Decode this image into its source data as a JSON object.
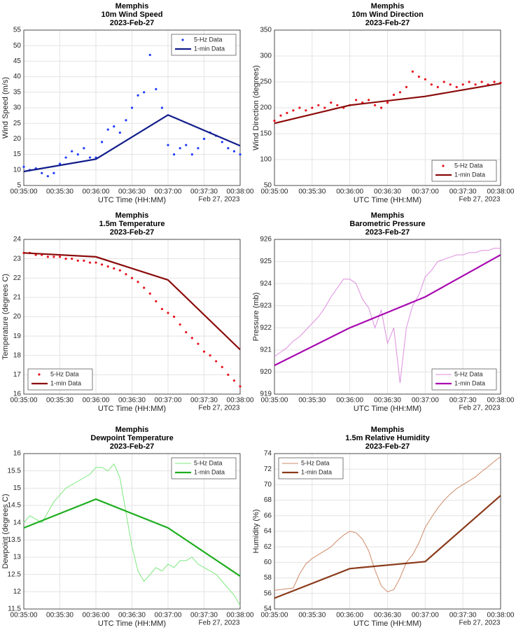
{
  "chart_data": [
    {
      "type": "line",
      "title": [
        "Memphis",
        "10m Wind Speed",
        "2023-Feb-27"
      ],
      "xlabel": "UTC Time (HH:MM)",
      "ylabel": "Wind Speed (m/s)",
      "date_label": "Feb 27, 2023",
      "xlim": [
        "00:35:00",
        "00:38:00"
      ],
      "xticks": [
        "00:35:00",
        "00:35:30",
        "00:36:00",
        "00:36:30",
        "00:37:00",
        "00:37:30",
        "00:38:00"
      ],
      "ylim": [
        5,
        55
      ],
      "yticks": [
        5,
        10,
        15,
        20,
        25,
        30,
        35,
        40,
        45,
        50,
        55
      ],
      "grid": true,
      "legend": "top-right",
      "series": [
        {
          "name": "5-Hz Data",
          "color": "#1f3cff",
          "style": "dots",
          "x": [
            "00:35:00",
            "00:35:05",
            "00:35:10",
            "00:35:15",
            "00:35:20",
            "00:35:25",
            "00:35:30",
            "00:35:35",
            "00:35:40",
            "00:35:45",
            "00:35:50",
            "00:35:55",
            "00:36:00",
            "00:36:05",
            "00:36:10",
            "00:36:15",
            "00:36:20",
            "00:36:25",
            "00:36:30",
            "00:36:35",
            "00:36:40",
            "00:36:45",
            "00:36:50",
            "00:36:55",
            "00:37:00",
            "00:37:05",
            "00:37:10",
            "00:37:15",
            "00:37:20",
            "00:37:25",
            "00:37:30",
            "00:37:35",
            "00:37:40",
            "00:37:45",
            "00:37:50",
            "00:37:55",
            "00:38:00"
          ],
          "values": [
            11,
            10,
            10.5,
            9,
            8,
            9,
            12,
            14,
            16,
            15,
            17,
            14,
            14,
            19,
            23,
            24,
            22,
            26,
            30,
            34,
            35,
            47,
            36,
            30,
            18,
            15,
            17,
            18,
            15,
            17,
            20,
            22,
            21,
            19,
            17,
            16,
            15
          ]
        },
        {
          "name": "1-min Data",
          "color": "#101c8a",
          "style": "line",
          "x": [
            "00:35:00",
            "00:36:00",
            "00:37:00",
            "00:38:00"
          ],
          "values": [
            9.5,
            13.5,
            27.7,
            17.8
          ]
        }
      ]
    },
    {
      "type": "line",
      "title": [
        "Memphis",
        "10m Wind Direction",
        "2023-Feb-27"
      ],
      "xlabel": "UTC Time (HH:MM)",
      "ylabel": "Wind Direction (degrees)",
      "date_label": "Feb 27, 2023",
      "xlim": [
        "00:35:00",
        "00:38:00"
      ],
      "xticks": [
        "00:35:00",
        "00:35:30",
        "00:36:00",
        "00:36:30",
        "00:37:00",
        "00:37:30",
        "00:38:00"
      ],
      "ylim": [
        50,
        350
      ],
      "yticks": [
        50,
        100,
        150,
        200,
        250,
        300,
        350
      ],
      "grid": true,
      "legend": "bottom-right",
      "series": [
        {
          "name": "5-Hz Data",
          "color": "#e8141e",
          "style": "dots",
          "x": [
            "00:35:00",
            "00:35:05",
            "00:35:10",
            "00:35:15",
            "00:35:20",
            "00:35:25",
            "00:35:30",
            "00:35:35",
            "00:35:40",
            "00:35:45",
            "00:35:50",
            "00:35:55",
            "00:36:00",
            "00:36:05",
            "00:36:10",
            "00:36:15",
            "00:36:20",
            "00:36:25",
            "00:36:30",
            "00:36:35",
            "00:36:40",
            "00:36:45",
            "00:36:50",
            "00:36:55",
            "00:37:00",
            "00:37:05",
            "00:37:10",
            "00:37:15",
            "00:37:20",
            "00:37:25",
            "00:37:30",
            "00:37:35",
            "00:37:40",
            "00:37:45",
            "00:37:50",
            "00:37:55",
            "00:38:00"
          ],
          "values": [
            175,
            185,
            190,
            195,
            200,
            195,
            200,
            205,
            200,
            210,
            205,
            200,
            205,
            215,
            210,
            215,
            205,
            200,
            210,
            225,
            230,
            240,
            270,
            260,
            255,
            245,
            240,
            250,
            245,
            240,
            245,
            250,
            245,
            250,
            245,
            250,
            248
          ]
        },
        {
          "name": "1-min Data",
          "color": "#8b0a0a",
          "style": "line",
          "x": [
            "00:35:00",
            "00:36:00",
            "00:37:00",
            "00:38:00"
          ],
          "values": [
            170,
            205,
            222,
            247
          ]
        }
      ]
    },
    {
      "type": "line",
      "title": [
        "Memphis",
        "1.5m Temperature",
        "2023-Feb-27"
      ],
      "xlabel": "UTC Time (HH:MM)",
      "ylabel": "Temperature (degrees C)",
      "date_label": "Feb 27, 2023",
      "xlim": [
        "00:35:00",
        "00:38:00"
      ],
      "xticks": [
        "00:35:00",
        "00:35:30",
        "00:36:00",
        "00:36:30",
        "00:37:00",
        "00:37:30",
        "00:38:00"
      ],
      "ylim": [
        16,
        24
      ],
      "yticks": [
        16,
        17,
        18,
        19,
        20,
        21,
        22,
        23,
        24
      ],
      "grid": true,
      "legend": "bottom-left",
      "series": [
        {
          "name": "5-Hz Data",
          "color": "#e8141e",
          "style": "dots",
          "x": [
            "00:35:00",
            "00:35:05",
            "00:35:10",
            "00:35:15",
            "00:35:20",
            "00:35:25",
            "00:35:30",
            "00:35:35",
            "00:35:40",
            "00:35:45",
            "00:35:50",
            "00:35:55",
            "00:36:00",
            "00:36:05",
            "00:36:10",
            "00:36:15",
            "00:36:20",
            "00:36:25",
            "00:36:30",
            "00:36:35",
            "00:36:40",
            "00:36:45",
            "00:36:50",
            "00:36:55",
            "00:37:00",
            "00:37:05",
            "00:37:10",
            "00:37:15",
            "00:37:20",
            "00:37:25",
            "00:37:30",
            "00:37:35",
            "00:37:40",
            "00:37:45",
            "00:37:50",
            "00:37:55",
            "00:38:00"
          ],
          "values": [
            23.3,
            23.3,
            23.2,
            23.2,
            23.1,
            23.1,
            23.1,
            23.0,
            23.0,
            22.9,
            22.9,
            22.8,
            22.8,
            22.7,
            22.6,
            22.5,
            22.4,
            22.2,
            22.0,
            21.8,
            21.5,
            21.2,
            20.8,
            20.4,
            20.2,
            20.0,
            19.6,
            19.2,
            18.9,
            18.6,
            18.2,
            18.0,
            17.7,
            17.4,
            17.0,
            16.7,
            16.4
          ]
        },
        {
          "name": "1-min Data",
          "color": "#8b0a0a",
          "style": "line",
          "x": [
            "00:35:00",
            "00:36:00",
            "00:37:00",
            "00:38:00"
          ],
          "values": [
            23.3,
            23.1,
            21.9,
            18.3
          ]
        }
      ]
    },
    {
      "type": "line",
      "title": [
        "Memphis",
        "Barometric Pressure",
        "2023-Feb-27"
      ],
      "xlabel": "UTC Time (HH:MM)",
      "ylabel": "Pressure (mb)",
      "date_label": "Feb 27, 2023",
      "xlim": [
        "00:35:00",
        "00:38:00"
      ],
      "xticks": [
        "00:35:00",
        "00:35:30",
        "00:36:00",
        "00:36:30",
        "00:37:00",
        "00:37:30",
        "00:38:00"
      ],
      "ylim": [
        919,
        926
      ],
      "yticks": [
        919,
        920,
        921,
        922,
        923,
        924,
        925,
        926
      ],
      "grid": true,
      "legend": "bottom-right",
      "series": [
        {
          "name": "5-Hz Data",
          "color": "#dd8ee0",
          "style": "thin",
          "x": [
            "00:35:00",
            "00:35:05",
            "00:35:10",
            "00:35:15",
            "00:35:20",
            "00:35:25",
            "00:35:30",
            "00:35:35",
            "00:35:40",
            "00:35:45",
            "00:35:50",
            "00:35:55",
            "00:36:00",
            "00:36:05",
            "00:36:10",
            "00:36:15",
            "00:36:20",
            "00:36:25",
            "00:36:30",
            "00:36:35",
            "00:36:40",
            "00:36:45",
            "00:36:50",
            "00:36:55",
            "00:37:00",
            "00:37:05",
            "00:37:10",
            "00:37:15",
            "00:37:20",
            "00:37:25",
            "00:37:30",
            "00:37:35",
            "00:37:40",
            "00:37:45",
            "00:37:50",
            "00:37:55",
            "00:38:00"
          ],
          "values": [
            920.7,
            920.9,
            921.1,
            921.4,
            921.6,
            921.9,
            922.2,
            922.5,
            922.9,
            923.4,
            923.8,
            924.2,
            924.2,
            924.0,
            923.3,
            922.9,
            922.0,
            922.8,
            921.3,
            922.0,
            919.5,
            922.0,
            923.0,
            923.5,
            924.3,
            924.6,
            925.0,
            925.1,
            925.2,
            925.3,
            925.3,
            925.4,
            925.4,
            925.5,
            925.5,
            925.6,
            925.6
          ]
        },
        {
          "name": "1-min Data",
          "color": "#a80ab0",
          "style": "line",
          "x": [
            "00:35:00",
            "00:36:00",
            "00:37:00",
            "00:38:00"
          ],
          "values": [
            920.3,
            922.0,
            923.4,
            925.3
          ]
        }
      ]
    },
    {
      "type": "line",
      "title": [
        "Memphis",
        "Dewpoint Temperature",
        "2023-Feb-27"
      ],
      "xlabel": "UTC Time (HH:MM)",
      "ylabel": "Dewpoint (degrees C)",
      "date_label": "Feb 27, 2023",
      "xlim": [
        "00:35:00",
        "00:38:00"
      ],
      "xticks": [
        "00:35:00",
        "00:35:30",
        "00:36:00",
        "00:36:30",
        "00:37:00",
        "00:37:30",
        "00:38:00"
      ],
      "ylim": [
        11.5,
        16
      ],
      "yticks": [
        11.5,
        12,
        12.5,
        13,
        13.5,
        14,
        14.5,
        15,
        15.5,
        16
      ],
      "grid": true,
      "legend": "top-right",
      "series": [
        {
          "name": "5-Hz Data",
          "color": "#7ee87e",
          "style": "thin",
          "x": [
            "00:35:00",
            "00:35:05",
            "00:35:10",
            "00:35:15",
            "00:35:20",
            "00:35:25",
            "00:35:30",
            "00:35:35",
            "00:35:40",
            "00:35:45",
            "00:35:50",
            "00:35:55",
            "00:36:00",
            "00:36:05",
            "00:36:10",
            "00:36:15",
            "00:36:20",
            "00:36:25",
            "00:36:30",
            "00:36:35",
            "00:36:40",
            "00:36:45",
            "00:36:50",
            "00:36:55",
            "00:37:00",
            "00:37:05",
            "00:37:10",
            "00:37:15",
            "00:37:20",
            "00:37:25",
            "00:37:30",
            "00:37:35",
            "00:37:40",
            "00:37:45",
            "00:37:50",
            "00:37:55",
            "00:38:00"
          ],
          "values": [
            14.0,
            14.2,
            14.1,
            14.0,
            14.3,
            14.6,
            14.8,
            15.0,
            15.1,
            15.2,
            15.3,
            15.4,
            15.6,
            15.6,
            15.5,
            15.7,
            15.3,
            14.3,
            13.3,
            12.6,
            12.3,
            12.5,
            12.7,
            12.6,
            12.8,
            12.7,
            12.9,
            12.9,
            13.0,
            12.8,
            12.7,
            12.6,
            12.5,
            12.3,
            12.1,
            11.9,
            11.6
          ]
        },
        {
          "name": "1-min Data",
          "color": "#1fae1f",
          "style": "line",
          "x": [
            "00:35:00",
            "00:36:00",
            "00:37:00",
            "00:38:00"
          ],
          "values": [
            13.85,
            14.68,
            13.85,
            12.45
          ]
        }
      ]
    },
    {
      "type": "line",
      "title": [
        "Memphis",
        "1.5m Relative Humidity",
        "2023-Feb-27"
      ],
      "xlabel": "UTC Time (HH:MM)",
      "ylabel": "Humidity (%)",
      "date_label": "Feb 27, 2023",
      "xlim": [
        "00:35:00",
        "00:38:00"
      ],
      "xticks": [
        "00:35:00",
        "00:35:30",
        "00:36:00",
        "00:36:30",
        "00:37:00",
        "00:37:30",
        "00:38:00"
      ],
      "ylim": [
        54,
        74
      ],
      "yticks": [
        54,
        56,
        58,
        60,
        62,
        64,
        66,
        68,
        70,
        72,
        74
      ],
      "grid": true,
      "legend": "top-left",
      "series": [
        {
          "name": "5-Hz Data",
          "color": "#cf8a68",
          "style": "thin",
          "x": [
            "00:35:00",
            "00:35:05",
            "00:35:10",
            "00:35:15",
            "00:35:20",
            "00:35:25",
            "00:35:30",
            "00:35:35",
            "00:35:40",
            "00:35:45",
            "00:35:50",
            "00:35:55",
            "00:36:00",
            "00:36:05",
            "00:36:10",
            "00:36:15",
            "00:36:20",
            "00:36:25",
            "00:36:30",
            "00:36:35",
            "00:36:40",
            "00:36:45",
            "00:36:50",
            "00:36:55",
            "00:37:00",
            "00:37:05",
            "00:37:10",
            "00:37:15",
            "00:37:20",
            "00:37:25",
            "00:37:30",
            "00:37:35",
            "00:37:40",
            "00:37:45",
            "00:37:50",
            "00:37:55",
            "00:38:00"
          ],
          "values": [
            56.4,
            56.5,
            56.6,
            56.7,
            58.5,
            59.8,
            60.5,
            61.0,
            61.5,
            62.0,
            62.8,
            63.5,
            64.0,
            63.8,
            63.0,
            61.5,
            59.0,
            57.0,
            56.2,
            56.5,
            58.0,
            60.0,
            61.0,
            62.5,
            64.5,
            65.8,
            67.0,
            68.0,
            68.8,
            69.5,
            70.0,
            70.5,
            71.0,
            71.7,
            72.3,
            73.0,
            73.6
          ]
        },
        {
          "name": "1-min Data",
          "color": "#8b3a1a",
          "style": "line",
          "x": [
            "00:35:00",
            "00:36:00",
            "00:37:00",
            "00:38:00"
          ],
          "values": [
            55.4,
            59.2,
            60.1,
            68.6
          ]
        }
      ]
    }
  ]
}
